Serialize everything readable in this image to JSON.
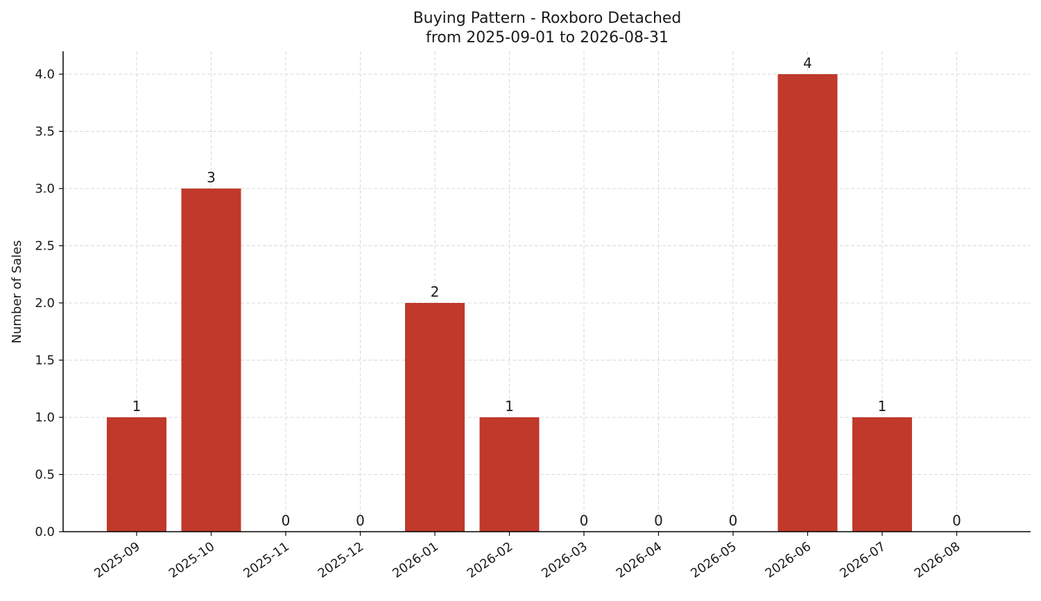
{
  "chart_data": {
    "type": "bar",
    "title": "Buying Pattern - Roxboro Detached",
    "subtitle": "from 2025-09-01 to 2026-08-31",
    "xlabel": "",
    "ylabel": "Number of Sales",
    "categories": [
      "2025-09",
      "2025-10",
      "2025-11",
      "2025-12",
      "2026-01",
      "2026-02",
      "2026-03",
      "2026-04",
      "2026-05",
      "2026-06",
      "2026-07",
      "2026-08"
    ],
    "values": [
      1,
      3,
      0,
      0,
      2,
      1,
      0,
      0,
      0,
      4,
      1,
      0
    ],
    "data_labels": [
      "1",
      "3",
      "0",
      "0",
      "2",
      "1",
      "0",
      "0",
      "0",
      "4",
      "1",
      "0"
    ],
    "ylim": [
      0,
      4.2
    ],
    "yticks": [
      0.0,
      0.5,
      1.0,
      1.5,
      2.0,
      2.5,
      3.0,
      3.5,
      4.0
    ],
    "ytick_labels": [
      "0.0",
      "0.5",
      "1.0",
      "1.5",
      "2.0",
      "2.5",
      "3.0",
      "3.5",
      "4.0"
    ],
    "bar_color": "#c0392b",
    "grid": true,
    "legend": false
  }
}
